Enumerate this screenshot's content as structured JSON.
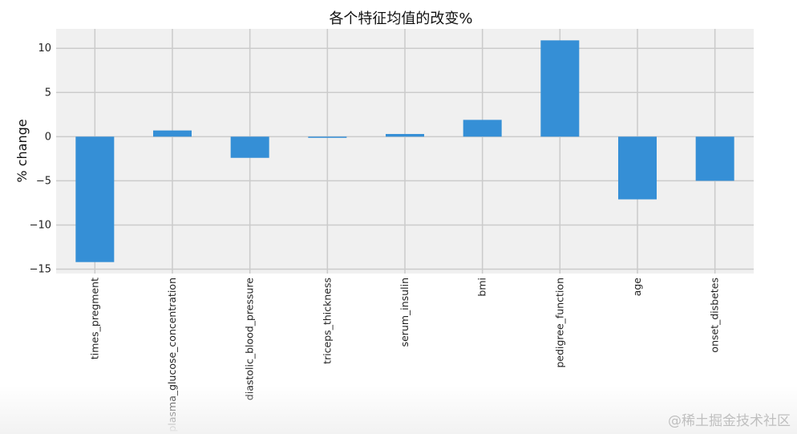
{
  "chart_data": {
    "type": "bar",
    "title": "各个特征均值的改变%",
    "xlabel": "",
    "ylabel": "% change",
    "categories": [
      "times_pregment",
      "plasma_glucose_concentration",
      "diastolic_blood_pressure",
      "triceps_thickness",
      "serum_insulin",
      "bmi",
      "pedigree_function",
      "age",
      "onset_disbetes"
    ],
    "values": [
      -14.2,
      0.7,
      -2.4,
      -0.1,
      0.3,
      1.9,
      10.9,
      -7.1,
      -5.0
    ],
    "ylim": [
      -15.5,
      12.2
    ],
    "yticks": [
      10,
      5,
      0,
      -5,
      -10,
      -15
    ],
    "ytick_labels": [
      "10",
      "5",
      "0",
      "−5",
      "−10",
      "−15"
    ],
    "grid": true,
    "bar_color": "#358fd6",
    "background_color": "#f0f0f0",
    "grid_color": "#cbcbcb"
  },
  "watermark": "@稀土掘金技术社区"
}
